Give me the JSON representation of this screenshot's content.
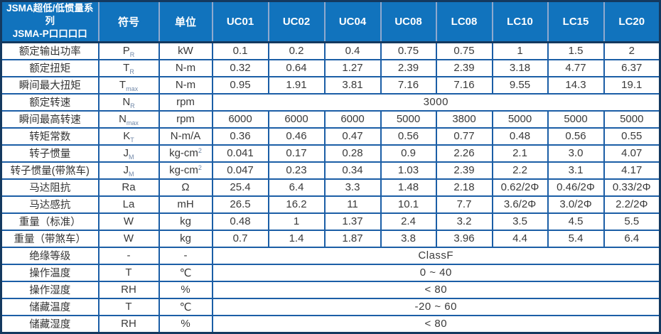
{
  "colors": {
    "header_bg": "#1173BD",
    "header_text": "#FFFFFF",
    "header_divider": "#8FA9CE",
    "grid_line": "#1B5EA6",
    "outer_frame": "#14395F",
    "body_text": "#3A3A3A",
    "subscript_text": "#7188A8"
  },
  "table": {
    "header": {
      "title_line1": "JSMA超低/低惯量系列",
      "title_line2": "JSMA-P口口口口",
      "symbol_col": "符号",
      "unit_col": "单位",
      "models": [
        "UC01",
        "UC02",
        "UC04",
        "UC08",
        "LC08",
        "LC10",
        "LC15",
        "LC20"
      ]
    },
    "rows": [
      {
        "label": "额定输出功率",
        "sym": "P",
        "sym_sub": "R",
        "unit": "kW",
        "unit_sup": "",
        "cells": [
          "0.1",
          "0.2",
          "0.4",
          "0.75",
          "0.75",
          "1",
          "1.5",
          "2"
        ]
      },
      {
        "label": "额定扭矩",
        "sym": "T",
        "sym_sub": "R",
        "unit": "N-m",
        "unit_sup": "",
        "cells": [
          "0.32",
          "0.64",
          "1.27",
          "2.39",
          "2.39",
          "3.18",
          "4.77",
          "6.37"
        ]
      },
      {
        "label": "瞬间最大扭矩",
        "sym": "T",
        "sym_sub": "max",
        "unit": "N-m",
        "unit_sup": "",
        "cells": [
          "0.95",
          "1.91",
          "3.81",
          "7.16",
          "7.16",
          "9.55",
          "14.3",
          "19.1"
        ]
      },
      {
        "label": "额定转速",
        "sym": "N",
        "sym_sub": "R",
        "unit": "rpm",
        "unit_sup": "",
        "span": "3000"
      },
      {
        "label": "瞬间最高转速",
        "sym": "N",
        "sym_sub": "max",
        "unit": "rpm",
        "unit_sup": "",
        "cells": [
          "6000",
          "6000",
          "6000",
          "5000",
          "3800",
          "5000",
          "5000",
          "5000"
        ]
      },
      {
        "label": "转矩常数",
        "sym": "K",
        "sym_sub": "T",
        "unit": "N-m/A",
        "unit_sup": "",
        "cells": [
          "0.36",
          "0.46",
          "0.47",
          "0.56",
          "0.77",
          "0.48",
          "0.56",
          "0.55"
        ]
      },
      {
        "label": "转子惯量",
        "sym": "J",
        "sym_sub": "M",
        "unit": "kg-cm",
        "unit_sup": "2",
        "cells": [
          "0.041",
          "0.17",
          "0.28",
          "0.9",
          "2.26",
          "2.1",
          "3.0",
          "4.07"
        ]
      },
      {
        "label": "转子惯量(带煞车)",
        "sym": "J",
        "sym_sub": "M",
        "unit": "kg-cm",
        "unit_sup": "2",
        "cells": [
          "0.047",
          "0.23",
          "0.34",
          "1.03",
          "2.39",
          "2.2",
          "3.1",
          "4.17"
        ]
      },
      {
        "label": "马达阻抗",
        "sym": "Ra",
        "sym_sub": "",
        "unit": "Ω",
        "unit_sup": "",
        "cells": [
          "25.4",
          "6.4",
          "3.3",
          "1.48",
          "2.18",
          "0.62/2Φ",
          "0.46/2Φ",
          "0.33/2Φ"
        ]
      },
      {
        "label": "马达感抗",
        "sym": "La",
        "sym_sub": "",
        "unit": "mH",
        "unit_sup": "",
        "cells": [
          "26.5",
          "16.2",
          "11",
          "10.1",
          "7.7",
          "3.6/2Φ",
          "3.0/2Φ",
          "2.2/2Φ"
        ]
      },
      {
        "label": "重量（标准）",
        "sym": "W",
        "sym_sub": "",
        "unit": "kg",
        "unit_sup": "",
        "cells": [
          "0.48",
          "1",
          "1.37",
          "2.4",
          "3.2",
          "3.5",
          "4.5",
          "5.5"
        ]
      },
      {
        "label": "重量（带煞车）",
        "sym": "W",
        "sym_sub": "",
        "unit": "kg",
        "unit_sup": "",
        "cells": [
          "0.7",
          "1.4",
          "1.87",
          "3.8",
          "3.96",
          "4.4",
          "5.4",
          "6.4"
        ]
      },
      {
        "label": "绝缘等级",
        "sym": "-",
        "sym_sub": "",
        "unit": "-",
        "unit_sup": "",
        "span": "ClassF"
      },
      {
        "label": "操作温度",
        "sym": "T",
        "sym_sub": "",
        "unit": "℃",
        "unit_sup": "",
        "span": "0 ~ 40"
      },
      {
        "label": "操作湿度",
        "sym": "RH",
        "sym_sub": "",
        "unit": "%",
        "unit_sup": "",
        "span": "< 80"
      },
      {
        "label": "储藏温度",
        "sym": "T",
        "sym_sub": "",
        "unit": "℃",
        "unit_sup": "",
        "span": "-20 ~ 60"
      },
      {
        "label": "储藏湿度",
        "sym": "RH",
        "sym_sub": "",
        "unit": "%",
        "unit_sup": "",
        "span": "< 80"
      }
    ]
  }
}
